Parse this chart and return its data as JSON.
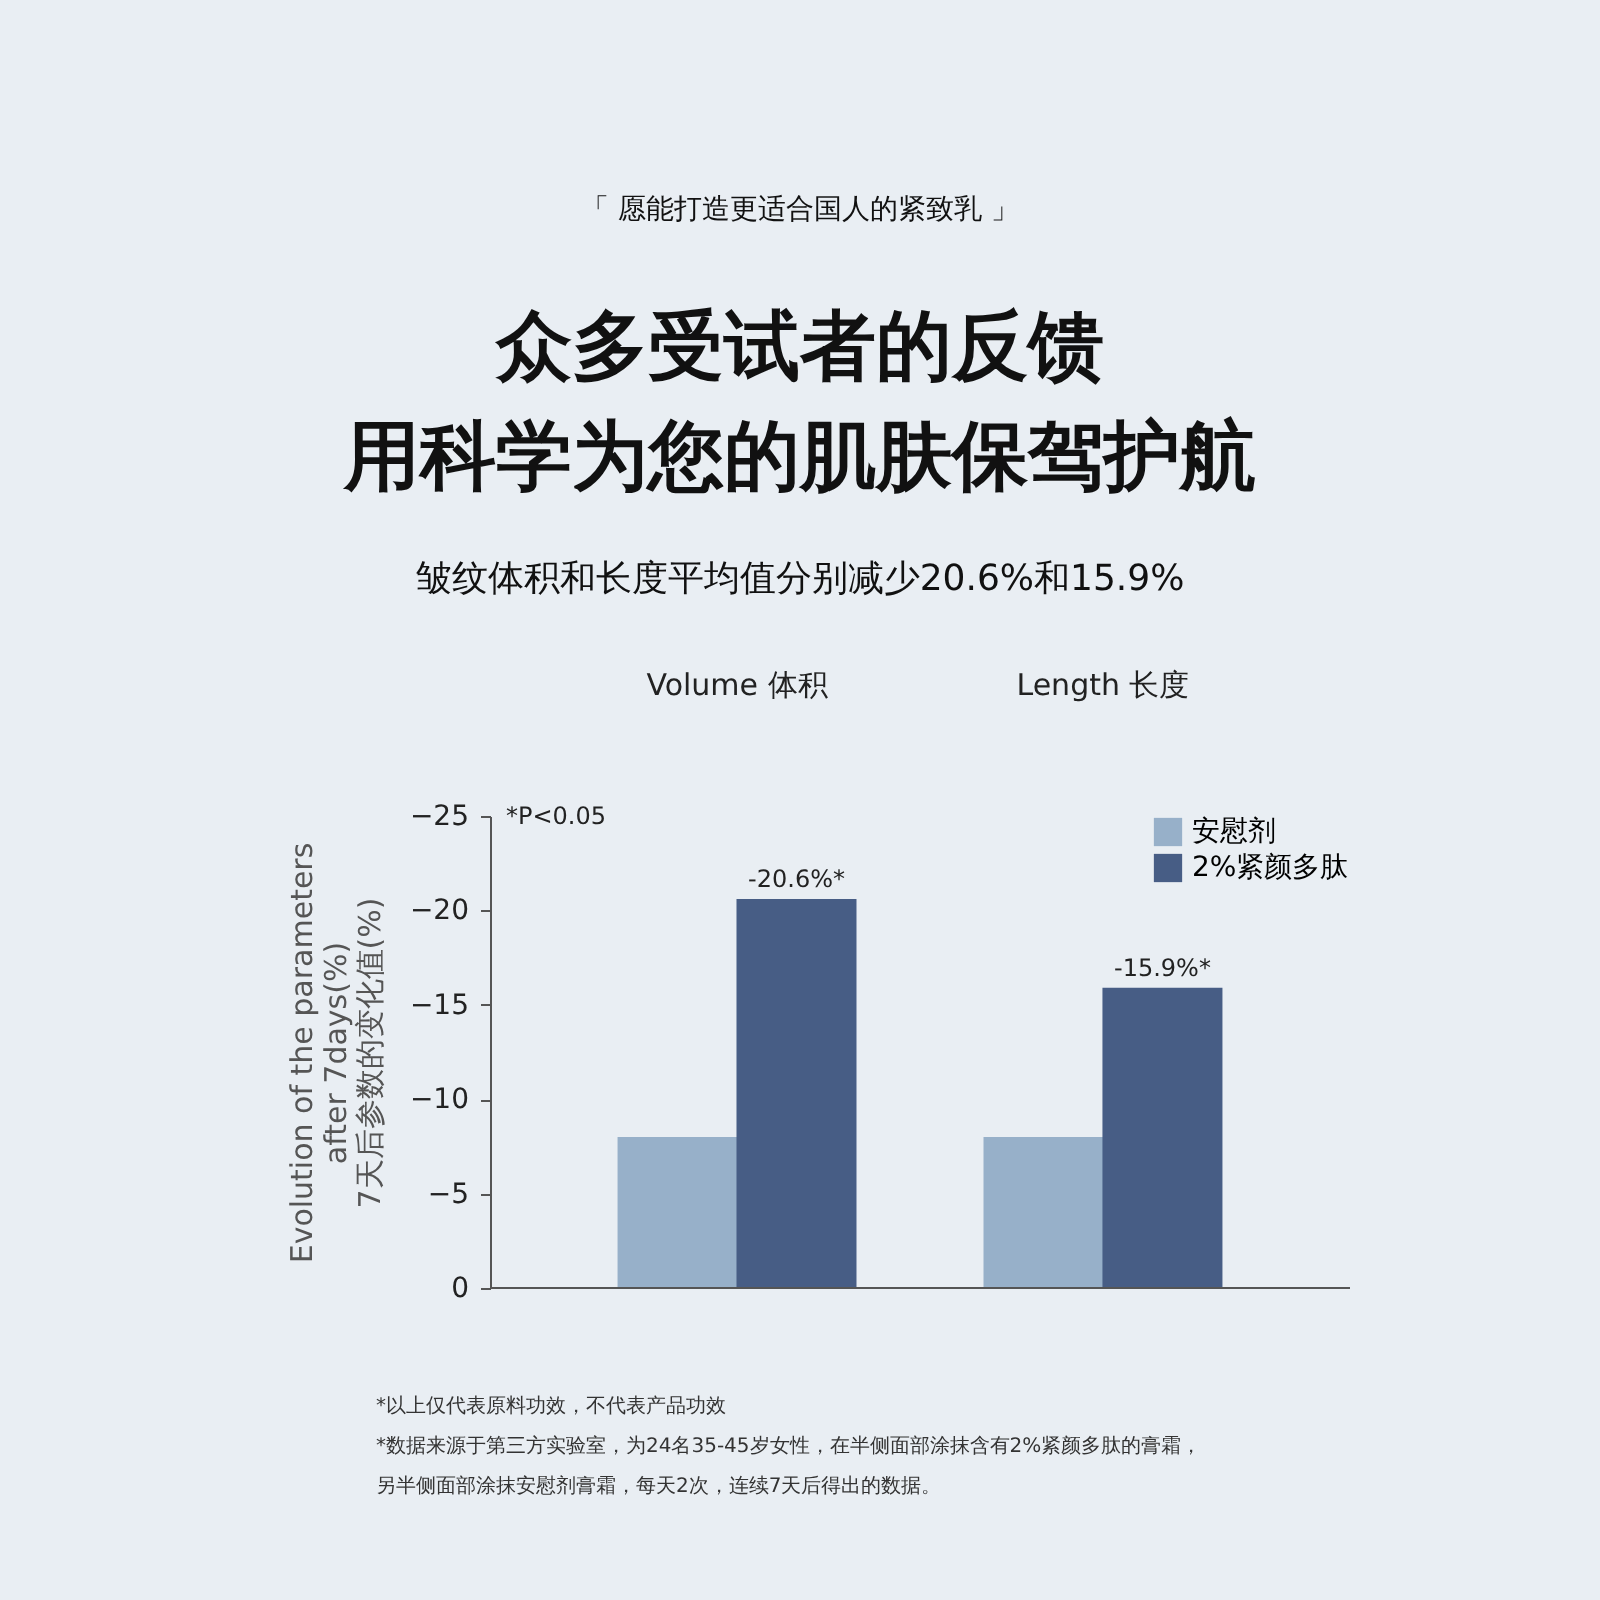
{
  "chart_data": {
    "type": "bar",
    "title": "众多受试者的反馈",
    "subtitle": "用科学为您的肌肤保驾护航",
    "ylabel": "Evolution of the parameters\nafter 7days(%)\n7天后参数的变化值(%)",
    "categories": [
      "Volume 体积",
      "Length 长度"
    ],
    "series": [
      {
        "name": "安慰剂",
        "color": "#97b0c9",
        "values": [
          -8.0,
          -8.0
        ],
        "value_labels": [
          null,
          null
        ]
      },
      {
        "name": "2%紧颜多肽",
        "color": "#475d85",
        "values": [
          -20.6,
          -15.9
        ],
        "value_labels": [
          "-20.6%*",
          "-15.9%*"
        ]
      }
    ],
    "ylim": [
      0,
      -25
    ],
    "yticks": [
      -25,
      -20,
      -15,
      -10,
      -5,
      0
    ],
    "grid": false,
    "legend": "top right",
    "annotations": [
      "「  愿能打造更适合国人的紧致乳  」",
      "皱纹体积和长度平均值分别减少20.6%和15.9%",
      "*P<0.05",
      "*以上仅代表原料功效，不代表产品功效",
      "*数据来源于第三方实验室，为24名35-45岁女性，在半侧面部涂抹含有2%紧颜多肽的膏霜，",
      "另半侧面部涂抹安慰剂膏霜，每天2次，连续7天后得出的数据。"
    ]
  }
}
